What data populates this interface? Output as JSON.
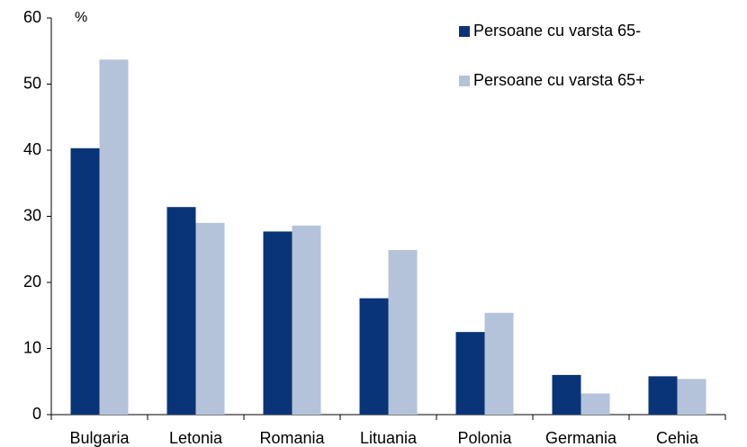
{
  "chart_data": {
    "type": "bar",
    "y_axis_label": "%",
    "categories": [
      "Bulgaria",
      "Letonia",
      "Romania",
      "Lituania",
      "Polonia",
      "Germania",
      "Cehia"
    ],
    "series": [
      {
        "name": "Persoane cu varsta 65-",
        "color": "#0a3478",
        "values": [
          40.3,
          31.4,
          27.7,
          17.6,
          12.5,
          6.0,
          5.8
        ]
      },
      {
        "name": "Persoane cu varsta 65+",
        "color": "#b4c3d9",
        "values": [
          53.7,
          29.0,
          28.6,
          24.9,
          15.4,
          3.2,
          5.4
        ]
      }
    ],
    "ylim": [
      0,
      60
    ],
    "yticks": [
      0,
      10,
      20,
      30,
      40,
      50,
      60
    ],
    "grid": false,
    "legend": "top-right"
  }
}
